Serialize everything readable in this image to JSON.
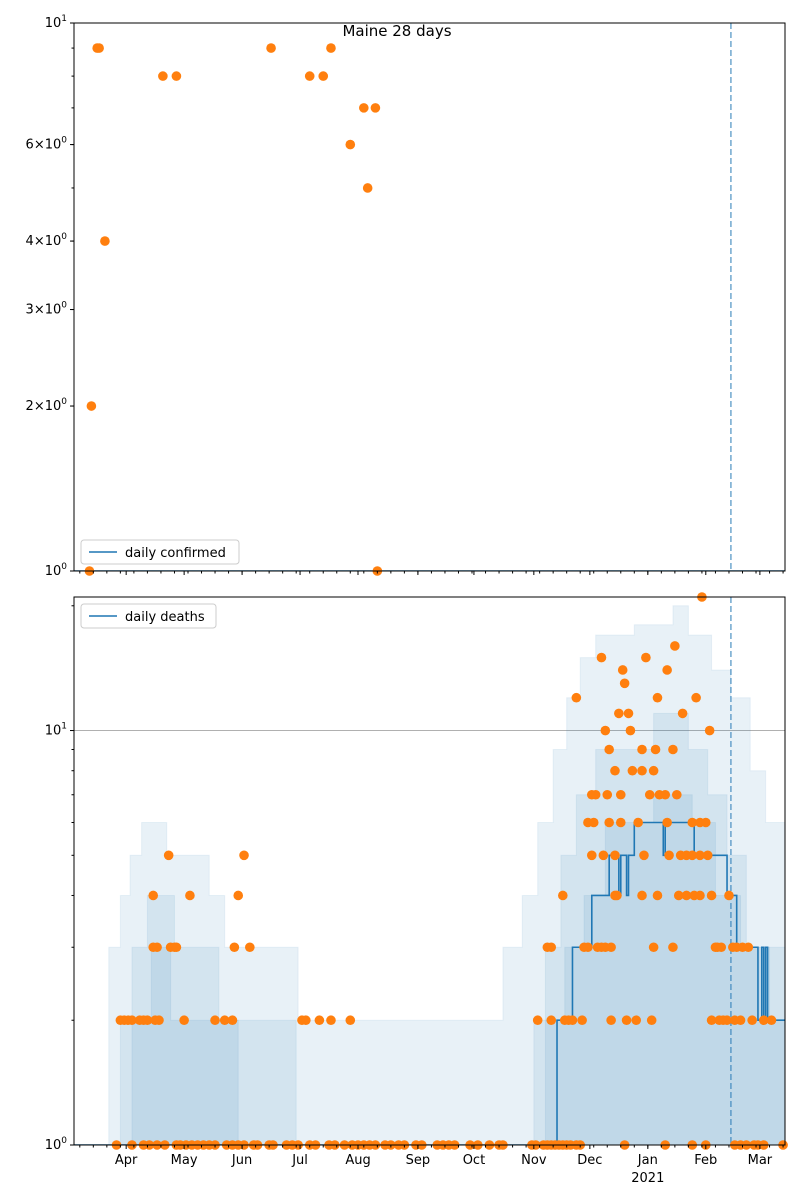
{
  "chart_data": [
    {
      "type": "scatter",
      "title": "Maine 28 days",
      "x_unit": "days since 2020-03-05",
      "xlim": [
        0,
        368
      ],
      "yscale": "log",
      "ylim": [
        1,
        10
      ],
      "ytick_labels": [
        {
          "value": 1,
          "label": "10",
          "exp": "0",
          "mant": ""
        },
        {
          "value": 2,
          "label": "10",
          "exp": "0",
          "mant": "2×"
        },
        {
          "value": 3,
          "label": "10",
          "exp": "0",
          "mant": "3×"
        },
        {
          "value": 4,
          "label": "10",
          "exp": "0",
          "mant": "4×"
        },
        {
          "value": 6,
          "label": "10",
          "exp": "0",
          "mant": "6×"
        },
        {
          "value": 10,
          "label": "10",
          "exp": "1",
          "mant": ""
        }
      ],
      "legend": {
        "label": "daily confirmed",
        "placement": "lower-left"
      },
      "line": [
        [
          0,
          1
        ],
        [
          368,
          1
        ]
      ],
      "points": [
        [
          8,
          1
        ],
        [
          9,
          2
        ],
        [
          12,
          9
        ],
        [
          13,
          9
        ],
        [
          16,
          4
        ],
        [
          46,
          8
        ],
        [
          53,
          8
        ],
        [
          102,
          9
        ],
        [
          122,
          8
        ],
        [
          129,
          8
        ],
        [
          133,
          9
        ],
        [
          143,
          6
        ],
        [
          150,
          7
        ],
        [
          152,
          5
        ],
        [
          156,
          7
        ],
        [
          157,
          1
        ]
      ],
      "vline_day": 340,
      "colors": {
        "line": "#1f77b4",
        "points": "#ff7f0e",
        "band": "#1f77b4"
      }
    },
    {
      "type": "scatter",
      "x_unit": "days since 2020-03-05",
      "xlim": [
        0,
        368
      ],
      "yscale": "log",
      "ylim": [
        1,
        21
      ],
      "ytick_labels": [
        {
          "value": 1,
          "label": "10",
          "exp": "0",
          "mant": ""
        },
        {
          "value": 10,
          "label": "10",
          "exp": "1",
          "mant": ""
        }
      ],
      "grid_y": [
        10
      ],
      "legend": {
        "label": "daily deaths",
        "placement": "upper-left"
      },
      "xtick_labels": [
        {
          "day": 27,
          "label": "Apr"
        },
        {
          "day": 57,
          "label": "May"
        },
        {
          "day": 87,
          "label": "Jun"
        },
        {
          "day": 117,
          "label": "Jul"
        },
        {
          "day": 147,
          "label": "Aug"
        },
        {
          "day": 178,
          "label": "Sep"
        },
        {
          "day": 207,
          "label": "Oct"
        },
        {
          "day": 238,
          "label": "Nov"
        },
        {
          "day": 267,
          "label": "Dec"
        },
        {
          "day": 297,
          "label": "Jan",
          "sub": "2021"
        },
        {
          "day": 327,
          "label": "Feb"
        },
        {
          "day": 355,
          "label": "Mar"
        }
      ],
      "line": [
        [
          0,
          1
        ],
        [
          250,
          2
        ],
        [
          258,
          3
        ],
        [
          268,
          4
        ],
        [
          277,
          5
        ],
        [
          282,
          4
        ],
        [
          283,
          5
        ],
        [
          286,
          4
        ],
        [
          287,
          5
        ],
        [
          290,
          6
        ],
        [
          300,
          6
        ],
        [
          305,
          5
        ],
        [
          306,
          6
        ],
        [
          315,
          6
        ],
        [
          321,
          5
        ],
        [
          338,
          4
        ],
        [
          343,
          3
        ],
        [
          354,
          2
        ],
        [
          356,
          3
        ],
        [
          357,
          2
        ],
        [
          358,
          3
        ],
        [
          359,
          2
        ],
        [
          368,
          2
        ]
      ],
      "bands": [
        [
          [
            18,
            3
          ],
          [
            24,
            4
          ],
          [
            29,
            5
          ],
          [
            35,
            6
          ],
          [
            48,
            5
          ],
          [
            70,
            4
          ],
          [
            78,
            3
          ],
          [
            116,
            2
          ],
          [
            192,
            2
          ],
          [
            222,
            3
          ],
          [
            232,
            4
          ],
          [
            240,
            6
          ],
          [
            248,
            9
          ],
          [
            255,
            12
          ],
          [
            262,
            15
          ],
          [
            270,
            17
          ],
          [
            290,
            18
          ],
          [
            310,
            20
          ],
          [
            318,
            17
          ],
          [
            330,
            14
          ],
          [
            340,
            12
          ],
          [
            350,
            8
          ],
          [
            358,
            6
          ],
          [
            368,
            6
          ]
        ],
        [
          [
            24,
            2
          ],
          [
            30,
            3
          ],
          [
            38,
            4
          ],
          [
            52,
            3
          ],
          [
            75,
            2
          ],
          [
            115,
            1
          ],
          [
            238,
            2
          ],
          [
            244,
            3
          ],
          [
            252,
            5
          ],
          [
            260,
            7
          ],
          [
            270,
            9
          ],
          [
            300,
            11
          ],
          [
            318,
            9
          ],
          [
            328,
            7
          ],
          [
            338,
            5
          ],
          [
            348,
            3
          ],
          [
            368,
            3
          ]
        ],
        [
          [
            30,
            2
          ],
          [
            40,
            3
          ],
          [
            50,
            2
          ],
          [
            85,
            1
          ],
          [
            244,
            2
          ],
          [
            254,
            3
          ],
          [
            264,
            4
          ],
          [
            275,
            6
          ],
          [
            300,
            7
          ],
          [
            320,
            6
          ],
          [
            332,
            4
          ],
          [
            345,
            3
          ],
          [
            360,
            2
          ],
          [
            368,
            2
          ]
        ]
      ],
      "points": [
        [
          22,
          1
        ],
        [
          30,
          1
        ],
        [
          36,
          1
        ],
        [
          39,
          1
        ],
        [
          43,
          1
        ],
        [
          47,
          1
        ],
        [
          53,
          1
        ],
        [
          55,
          1
        ],
        [
          58,
          1
        ],
        [
          61,
          1
        ],
        [
          64,
          1
        ],
        [
          67,
          1
        ],
        [
          70,
          1
        ],
        [
          73,
          1
        ],
        [
          79,
          1
        ],
        [
          82,
          1
        ],
        [
          85,
          1
        ],
        [
          88,
          1
        ],
        [
          93,
          1
        ],
        [
          95,
          1
        ],
        [
          101,
          1
        ],
        [
          103,
          1
        ],
        [
          110,
          1
        ],
        [
          113,
          1
        ],
        [
          116,
          1
        ],
        [
          122,
          1
        ],
        [
          125,
          1
        ],
        [
          132,
          1
        ],
        [
          135,
          1
        ],
        [
          140,
          1
        ],
        [
          144,
          1
        ],
        [
          147,
          1
        ],
        [
          150,
          1
        ],
        [
          153,
          1
        ],
        [
          156,
          1
        ],
        [
          161,
          1
        ],
        [
          164,
          1
        ],
        [
          168,
          1
        ],
        [
          171,
          1
        ],
        [
          177,
          1
        ],
        [
          180,
          1
        ],
        [
          188,
          1
        ],
        [
          191,
          1
        ],
        [
          194,
          1
        ],
        [
          197,
          1
        ],
        [
          205,
          1
        ],
        [
          209,
          1
        ],
        [
          215,
          1
        ],
        [
          220,
          1
        ],
        [
          222,
          1
        ],
        [
          237,
          1
        ],
        [
          239,
          1
        ],
        [
          243,
          1
        ],
        [
          245,
          1
        ],
        [
          247,
          1
        ],
        [
          249,
          1
        ],
        [
          251,
          1
        ],
        [
          253,
          1
        ],
        [
          255,
          1
        ],
        [
          257,
          1
        ],
        [
          260,
          1
        ],
        [
          262,
          1
        ],
        [
          285,
          1
        ],
        [
          306,
          1
        ],
        [
          320,
          1
        ],
        [
          327,
          1
        ],
        [
          342,
          1
        ],
        [
          345,
          1
        ],
        [
          348,
          1
        ],
        [
          352,
          1
        ],
        [
          354,
          1
        ],
        [
          357,
          1
        ],
        [
          367,
          1
        ],
        [
          24,
          2
        ],
        [
          26,
          2
        ],
        [
          28,
          2
        ],
        [
          30,
          2
        ],
        [
          34,
          2
        ],
        [
          36,
          2
        ],
        [
          38,
          2
        ],
        [
          42,
          2
        ],
        [
          44,
          2
        ],
        [
          57,
          2
        ],
        [
          73,
          2
        ],
        [
          78,
          2
        ],
        [
          82,
          2
        ],
        [
          118,
          2
        ],
        [
          120,
          2
        ],
        [
          127,
          2
        ],
        [
          133,
          2
        ],
        [
          143,
          2
        ],
        [
          240,
          2
        ],
        [
          247,
          2
        ],
        [
          254,
          2
        ],
        [
          256,
          2
        ],
        [
          258,
          2
        ],
        [
          263,
          2
        ],
        [
          278,
          2
        ],
        [
          286,
          2
        ],
        [
          291,
          2
        ],
        [
          299,
          2
        ],
        [
          330,
          2
        ],
        [
          334,
          2
        ],
        [
          336,
          2
        ],
        [
          338,
          2
        ],
        [
          342,
          2
        ],
        [
          345,
          2
        ],
        [
          351,
          2
        ],
        [
          357,
          2
        ],
        [
          361,
          2
        ],
        [
          41,
          3
        ],
        [
          43,
          3
        ],
        [
          50,
          3
        ],
        [
          52,
          3
        ],
        [
          53,
          3
        ],
        [
          83,
          3
        ],
        [
          91,
          3
        ],
        [
          245,
          3
        ],
        [
          247,
          3
        ],
        [
          264,
          3
        ],
        [
          266,
          3
        ],
        [
          271,
          3
        ],
        [
          273,
          3
        ],
        [
          275,
          3
        ],
        [
          278,
          3
        ],
        [
          300,
          3
        ],
        [
          310,
          3
        ],
        [
          332,
          3
        ],
        [
          333,
          3
        ],
        [
          335,
          3
        ],
        [
          341,
          3
        ],
        [
          343,
          3
        ],
        [
          346,
          3
        ],
        [
          349,
          3
        ],
        [
          41,
          4
        ],
        [
          60,
          4
        ],
        [
          85,
          4
        ],
        [
          253,
          4
        ],
        [
          280,
          4
        ],
        [
          281,
          4
        ],
        [
          294,
          4
        ],
        [
          302,
          4
        ],
        [
          313,
          4
        ],
        [
          317,
          4
        ],
        [
          321,
          4
        ],
        [
          324,
          4
        ],
        [
          330,
          4
        ],
        [
          339,
          4
        ],
        [
          49,
          5
        ],
        [
          88,
          5
        ],
        [
          268,
          5
        ],
        [
          274,
          5
        ],
        [
          280,
          5
        ],
        [
          295,
          5
        ],
        [
          308,
          5
        ],
        [
          314,
          5
        ],
        [
          317,
          5
        ],
        [
          320,
          5
        ],
        [
          324,
          5
        ],
        [
          328,
          5
        ],
        [
          266,
          6
        ],
        [
          269,
          6
        ],
        [
          277,
          6
        ],
        [
          283,
          6
        ],
        [
          292,
          6
        ],
        [
          307,
          6
        ],
        [
          320,
          6
        ],
        [
          324,
          6
        ],
        [
          327,
          6
        ],
        [
          268,
          7
        ],
        [
          270,
          7
        ],
        [
          276,
          7
        ],
        [
          283,
          7
        ],
        [
          298,
          7
        ],
        [
          303,
          7
        ],
        [
          306,
          7
        ],
        [
          312,
          7
        ],
        [
          280,
          8
        ],
        [
          289,
          8
        ],
        [
          294,
          8
        ],
        [
          300,
          8
        ],
        [
          277,
          9
        ],
        [
          294,
          9
        ],
        [
          301,
          9
        ],
        [
          310,
          9
        ],
        [
          275,
          10
        ],
        [
          288,
          10
        ],
        [
          329,
          10
        ],
        [
          282,
          11
        ],
        [
          287,
          11
        ],
        [
          315,
          11
        ],
        [
          260,
          12
        ],
        [
          302,
          12
        ],
        [
          322,
          12
        ],
        [
          285,
          13
        ],
        [
          284,
          14
        ],
        [
          307,
          14
        ],
        [
          273,
          15
        ],
        [
          296,
          15
        ],
        [
          311,
          16
        ],
        [
          325,
          21
        ]
      ],
      "vline_day": 340,
      "colors": {
        "line": "#1f77b4",
        "points": "#ff7f0e",
        "band": "#1f77b4",
        "grid": "#b0b0b0"
      }
    }
  ]
}
